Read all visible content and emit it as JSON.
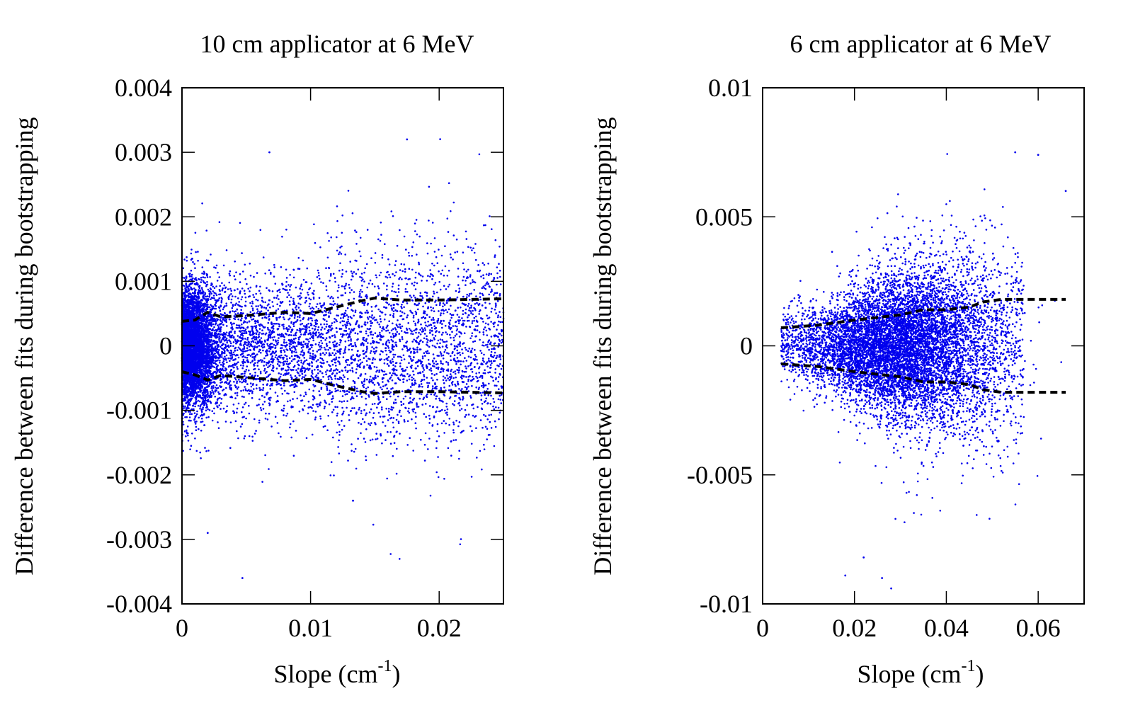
{
  "chart_data": [
    {
      "type": "scatter",
      "title": "10 cm applicator at 6 MeV",
      "xlabel": "Slope (cm",
      "xlabel_sup": "-1",
      "xlabel_close": ")",
      "ylabel": "Difference between fits during bootstrapping",
      "xlim": [
        0,
        0.025
      ],
      "ylim": [
        -0.004,
        0.004
      ],
      "xticks": [
        0,
        0.01,
        0.02
      ],
      "xtick_labels": [
        "0",
        "0.01",
        "0.02"
      ],
      "yticks": [
        -0.004,
        -0.003,
        -0.002,
        -0.001,
        0,
        0.001,
        0.002,
        0.003,
        0.004
      ],
      "ytick_labels": [
        "-0.004",
        "-0.003",
        "-0.002",
        "-0.001",
        "0",
        "0.001",
        "0.002",
        "0.003",
        "0.004"
      ],
      "grid": false,
      "point_color": "#0000ee",
      "band_color": "#000000",
      "scatter_density": {
        "approx_points": 9000,
        "core_x_range": [
          0.0,
          0.004
        ],
        "x_extent": [
          0.0,
          0.025
        ],
        "std_at_x": [
          {
            "x": 0.0,
            "std": 0.00045
          },
          {
            "x": 0.002,
            "std": 0.00055
          },
          {
            "x": 0.005,
            "std": 0.00052
          },
          {
            "x": 0.01,
            "std": 0.00055
          },
          {
            "x": 0.015,
            "std": 0.00075
          },
          {
            "x": 0.02,
            "std": 0.00075
          },
          {
            "x": 0.025,
            "std": 0.00075
          }
        ]
      },
      "notable_outliers": [
        {
          "x": 0.0068,
          "y": 0.003
        },
        {
          "x": 0.0175,
          "y": 0.0032
        },
        {
          "x": 0.0047,
          "y": -0.0036
        },
        {
          "x": 0.002,
          "y": -0.0029
        },
        {
          "x": 0.0133,
          "y": -0.0024
        }
      ],
      "series": [
        {
          "type": "line",
          "style": "dashed",
          "x": [
            0.0,
            0.001,
            0.002,
            0.003,
            0.005,
            0.008,
            0.01,
            0.012,
            0.014,
            0.015,
            0.017,
            0.02,
            0.025
          ],
          "y": [
            0.00038,
            0.0004,
            0.00052,
            0.00045,
            0.00047,
            0.00052,
            0.0005,
            0.0006,
            0.0007,
            0.00074,
            0.00071,
            0.00071,
            0.00073
          ]
        },
        {
          "type": "line",
          "style": "dashed",
          "x": [
            0.0,
            0.001,
            0.002,
            0.003,
            0.005,
            0.008,
            0.01,
            0.012,
            0.014,
            0.015,
            0.017,
            0.02,
            0.025
          ],
          "y": [
            -0.0004,
            -0.00045,
            -0.00053,
            -0.00046,
            -0.00049,
            -0.00054,
            -0.00052,
            -0.00062,
            -0.00071,
            -0.00074,
            -0.00071,
            -0.00071,
            -0.00073
          ]
        }
      ]
    },
    {
      "type": "scatter",
      "title": "6 cm applicator at 6 MeV",
      "xlabel": "Slope (cm",
      "xlabel_sup": "-1",
      "xlabel_close": ")",
      "ylabel": "Difference between fits during bootstrapping",
      "xlim": [
        0,
        0.07
      ],
      "ylim": [
        -0.01,
        0.01
      ],
      "xticks": [
        0,
        0.02,
        0.04,
        0.06
      ],
      "xtick_labels": [
        "0",
        "0.02",
        "0.04",
        "0.06"
      ],
      "yticks": [
        -0.01,
        -0.005,
        0,
        0.005,
        0.01
      ],
      "ytick_labels": [
        "-0.01",
        "-0.005",
        "0",
        "0.005",
        "0.01"
      ],
      "grid": false,
      "point_color": "#0000ee",
      "band_color": "#000000",
      "scatter_density": {
        "approx_points": 9000,
        "core_x_range": [
          0.015,
          0.045
        ],
        "x_extent": [
          0.004,
          0.066
        ],
        "std_at_x": [
          {
            "x": 0.004,
            "std": 0.0007
          },
          {
            "x": 0.012,
            "std": 0.0008
          },
          {
            "x": 0.02,
            "std": 0.0011
          },
          {
            "x": 0.03,
            "std": 0.0014
          },
          {
            "x": 0.04,
            "std": 0.0016
          },
          {
            "x": 0.047,
            "std": 0.0018
          },
          {
            "x": 0.055,
            "std": 0.0019
          },
          {
            "x": 0.066,
            "std": 0.0019
          }
        ]
      },
      "notable_outliers": [
        {
          "x": 0.055,
          "y": 0.0075
        },
        {
          "x": 0.06,
          "y": 0.0074
        },
        {
          "x": 0.066,
          "y": 0.006
        },
        {
          "x": 0.028,
          "y": -0.0094
        },
        {
          "x": 0.018,
          "y": -0.0089
        },
        {
          "x": 0.022,
          "y": -0.0082
        },
        {
          "x": 0.026,
          "y": -0.009
        }
      ],
      "series": [
        {
          "type": "line",
          "style": "dashed",
          "x": [
            0.004,
            0.008,
            0.012,
            0.016,
            0.02,
            0.025,
            0.03,
            0.035,
            0.04,
            0.045,
            0.048,
            0.052,
            0.056,
            0.06,
            0.066
          ],
          "y": [
            0.0007,
            0.00075,
            0.0008,
            0.0009,
            0.001,
            0.0011,
            0.0012,
            0.0014,
            0.0014,
            0.0015,
            0.0017,
            0.0018,
            0.0018,
            0.0018,
            0.0018
          ]
        },
        {
          "type": "line",
          "style": "dashed",
          "x": [
            0.004,
            0.008,
            0.012,
            0.016,
            0.02,
            0.025,
            0.03,
            0.035,
            0.04,
            0.045,
            0.048,
            0.052,
            0.056,
            0.06,
            0.066
          ],
          "y": [
            -0.0007,
            -0.00075,
            -0.0008,
            -0.0009,
            -0.001,
            -0.0011,
            -0.0012,
            -0.0014,
            -0.0014,
            -0.0015,
            -0.0017,
            -0.0018,
            -0.0018,
            -0.0018,
            -0.0018
          ]
        }
      ]
    }
  ]
}
